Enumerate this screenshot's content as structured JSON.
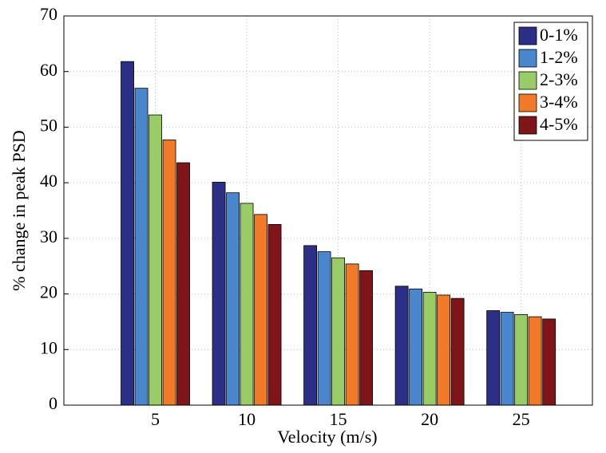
{
  "chart_data": {
    "type": "bar",
    "x_label": "Velocity (m/s)",
    "y_label": "% change in peak PSD",
    "categories": [
      "5",
      "10",
      "15",
      "20",
      "25"
    ],
    "series": [
      {
        "name": "0-1%",
        "color": "#2b2f85",
        "values": [
          61.8,
          40.1,
          28.7,
          21.4,
          17.0
        ]
      },
      {
        "name": "1-2%",
        "color": "#4a86cc",
        "values": [
          57.0,
          38.2,
          27.6,
          20.9,
          16.7
        ]
      },
      {
        "name": "2-3%",
        "color": "#99cc66",
        "values": [
          52.2,
          36.3,
          26.5,
          20.3,
          16.3
        ]
      },
      {
        "name": "3-4%",
        "color": "#f07a28",
        "values": [
          47.7,
          34.3,
          25.4,
          19.8,
          15.9
        ]
      },
      {
        "name": "4-5%",
        "color": "#7e1519",
        "values": [
          43.6,
          32.5,
          24.2,
          19.2,
          15.5
        ]
      }
    ],
    "ylim": [
      0,
      70
    ],
    "yticks": [
      0,
      10,
      20,
      30,
      40,
      50,
      60,
      70
    ],
    "grid": true,
    "legend": "upper right"
  }
}
